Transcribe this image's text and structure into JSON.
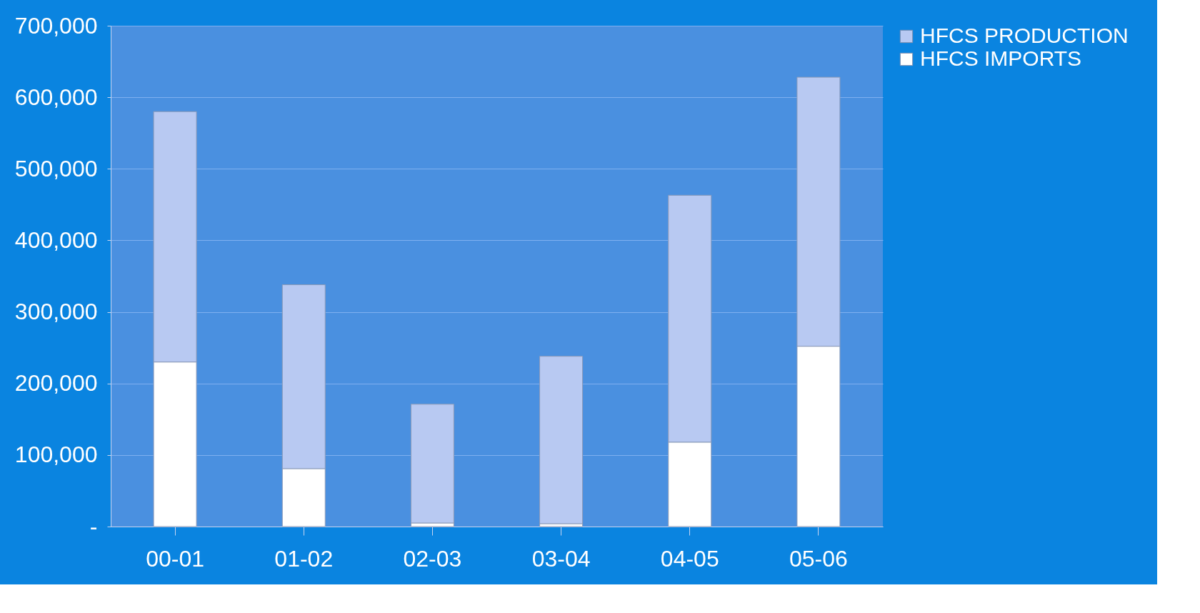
{
  "chart_data": {
    "type": "bar",
    "stacked": true,
    "categories": [
      "00-01",
      "01-02",
      "02-03",
      "03-04",
      "04-05",
      "05-06"
    ],
    "series": [
      {
        "name": "HFCS IMPORTS",
        "color": "#ffffff",
        "values": [
          230000,
          81000,
          5000,
          4000,
          118000,
          252000
        ]
      },
      {
        "name": "HFCS PRODUCTION",
        "color": "#b8c9f2",
        "values": [
          350000,
          257000,
          166000,
          234000,
          345000,
          376000
        ]
      }
    ],
    "ylim": [
      0,
      700000
    ],
    "yticks": [
      {
        "value": 0,
        "label": "-"
      },
      {
        "value": 100000,
        "label": "100,000"
      },
      {
        "value": 200000,
        "label": "200,000"
      },
      {
        "value": 300000,
        "label": "300,000"
      },
      {
        "value": 400000,
        "label": "400,000"
      },
      {
        "value": 500000,
        "label": "500,000"
      },
      {
        "value": 600000,
        "label": "600,000"
      },
      {
        "value": 700000,
        "label": "700,000"
      }
    ],
    "grid": true,
    "legend": "right"
  }
}
